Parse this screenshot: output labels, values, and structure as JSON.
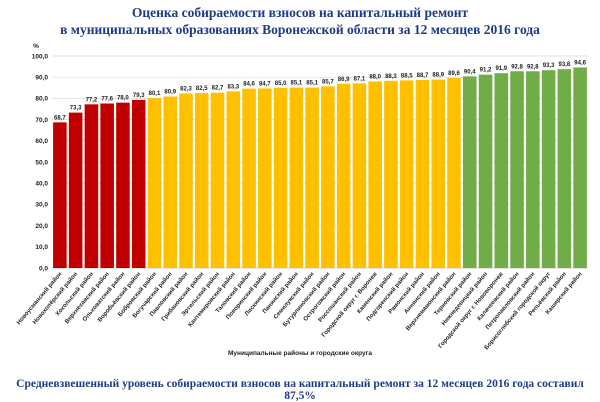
{
  "chart_data": {
    "type": "bar",
    "title_line1": "Оценка собираемости взносов на капитальный ремонт",
    "title_line2": "в муниципальных образованиях Воронежской области за 12 месяцев 2016 года",
    "ylabel": "%",
    "xlabel": "Муниципальные районы и городские округа",
    "footer": "Средневзвешенный уровень собираемости взносов на капитальный ремонт за 12 месяцев 2016 года составил 87,5%",
    "ylim": [
      0,
      100
    ],
    "yticks": [
      "0,0",
      "10,0",
      "20,0",
      "30,0",
      "40,0",
      "50,0",
      "60,0",
      "70,0",
      "80,0",
      "90,0",
      "100,0"
    ],
    "grid": true,
    "colors": {
      "red": "#c00000",
      "yellow": "#ffc000",
      "green": "#70ad47"
    },
    "categories": [
      "Новоусманский район",
      "Новохопёрский район",
      "Хохольский район",
      "Верхнехавский район",
      "Ольховатский район",
      "Воробьёвский район",
      "Бобровский район",
      "Богучарский район",
      "Павловский район",
      "Грибановский район",
      "Эртильский район",
      "Кантемировский район",
      "Таловский район",
      "Поворинский район",
      "Лискинский район",
      "Панинский район",
      "Семилукский район",
      "Бутурлиновский район",
      "Острогожский район",
      "Россошанский район",
      "Городской округ г. Воронеж",
      "Каменский район",
      "Подгоренский район",
      "Рамонский район",
      "Аннинский район",
      "Верхнемамонский район",
      "Терновский район",
      "Нижнедевицкий район",
      "Городской округ г. Нововоронеж",
      "Калачеевский район",
      "Петропавловский район",
      "Борисоглебский городской округ",
      "Репьёвский район",
      "Каширский район"
    ],
    "values": [
      68.7,
      73.3,
      77.2,
      77.6,
      78.0,
      79.3,
      80.1,
      80.9,
      82.3,
      82.5,
      82.7,
      83.3,
      84.6,
      84.7,
      85.0,
      85.1,
      85.1,
      85.7,
      86.9,
      87.1,
      88.0,
      88.3,
      88.5,
      88.7,
      88.9,
      89.6,
      90.4,
      91.2,
      91.9,
      92.8,
      92.8,
      93.3,
      93.8,
      94.6
    ],
    "value_labels": [
      "68,7",
      "73,3",
      "77,2",
      "77,6",
      "78,0",
      "79,3",
      "80,1",
      "80,9",
      "82,3",
      "82,5",
      "82,7",
      "83,3",
      "84,6",
      "84,7",
      "85,0",
      "85,1",
      "85,1",
      "85,7",
      "86,9",
      "87,1",
      "88,0",
      "88,3",
      "88,5",
      "88,7",
      "88,9",
      "89,6",
      "90,4",
      "91,2",
      "91,9",
      "92,8",
      "92,8",
      "93,3",
      "93,8",
      "94,6"
    ],
    "bar_colors": [
      "red",
      "red",
      "red",
      "red",
      "red",
      "red",
      "yellow",
      "yellow",
      "yellow",
      "yellow",
      "yellow",
      "yellow",
      "yellow",
      "yellow",
      "yellow",
      "yellow",
      "yellow",
      "yellow",
      "yellow",
      "yellow",
      "yellow",
      "yellow",
      "yellow",
      "yellow",
      "yellow",
      "yellow",
      "green",
      "green",
      "green",
      "green",
      "green",
      "green",
      "green",
      "green"
    ]
  }
}
